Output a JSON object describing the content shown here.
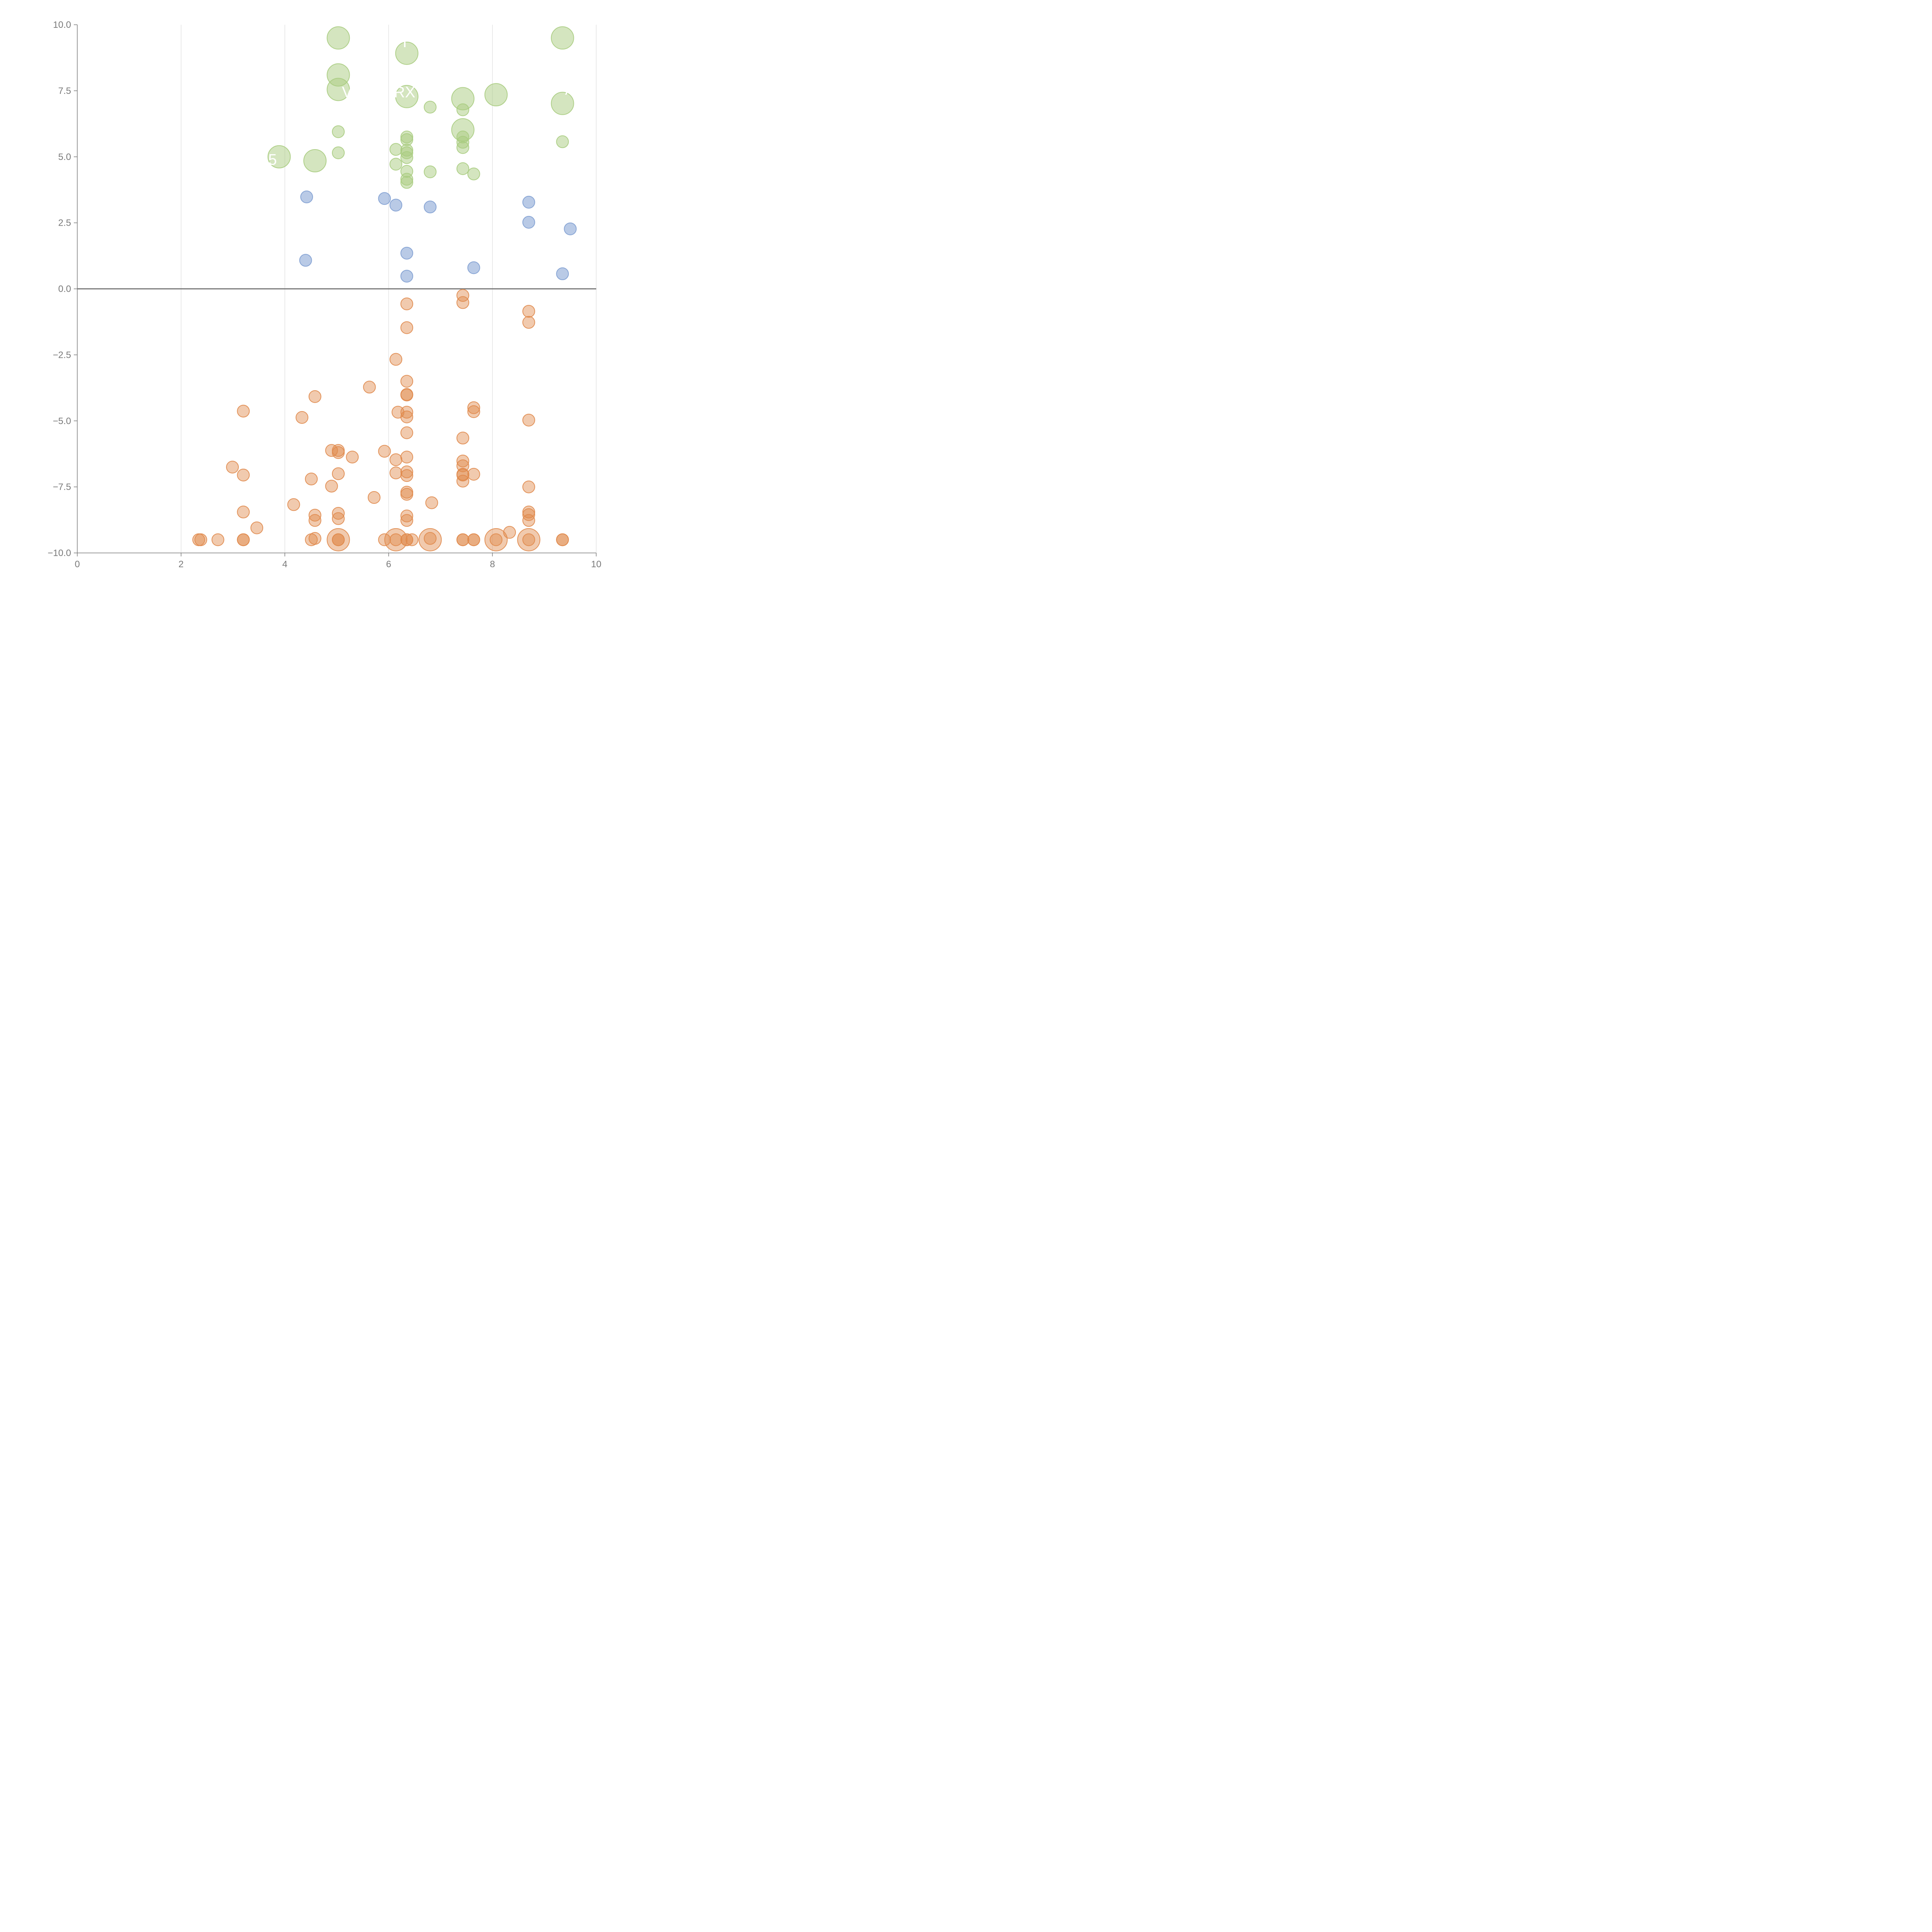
{
  "chart_data": {
    "type": "scatter",
    "title": "",
    "xlabel": "",
    "ylabel": "",
    "xlim": [
      0,
      10
    ],
    "ylim": [
      -10,
      10
    ],
    "x_ticks": [
      0,
      2,
      4,
      6,
      8,
      10
    ],
    "x_tick_labels": [
      "0",
      "2",
      "4",
      "6",
      "8",
      "10"
    ],
    "y_ticks": [
      -10,
      -7.5,
      -5,
      -2.5,
      0,
      2.5,
      5,
      7.5,
      10
    ],
    "y_tick_labels": [
      "−10.0",
      "−7.5",
      "−5.0",
      "−2.5",
      "0.0",
      "2.5",
      "5.0",
      "7.5",
      "10.0"
    ],
    "vertical_gridlines": true,
    "zero_line": true,
    "colors": {
      "green": "#a9cc80",
      "blue": "#7f9fd2",
      "orange": "#e08a4c",
      "axis": "#7a7a7a",
      "grid": "#dddddd"
    },
    "series": [
      {
        "name": "green",
        "color": "#a9cc80",
        "opacity": 0.5,
        "points": [
          [
            5.03,
            9.5,
            "l"
          ],
          [
            9.35,
            9.5,
            "l"
          ],
          [
            6.35,
            8.92,
            "l"
          ],
          [
            5.03,
            8.1,
            "l"
          ],
          [
            5.03,
            7.55,
            "l"
          ],
          [
            6.35,
            7.28,
            "l"
          ],
          [
            7.43,
            7.2,
            "l"
          ],
          [
            8.07,
            7.35,
            "l"
          ],
          [
            9.35,
            7.02,
            "l"
          ],
          [
            7.43,
            6.02,
            "l"
          ],
          [
            3.89,
            5.0,
            "l"
          ],
          [
            4.58,
            4.85,
            "l"
          ],
          [
            6.8,
            6.88,
            "s"
          ],
          [
            7.43,
            6.78,
            "s"
          ],
          [
            5.03,
            5.95,
            "s"
          ],
          [
            6.35,
            5.75,
            "s"
          ],
          [
            6.35,
            5.65,
            "s"
          ],
          [
            7.43,
            5.75,
            "s"
          ],
          [
            7.43,
            5.55,
            "s"
          ],
          [
            7.43,
            5.35,
            "s"
          ],
          [
            9.35,
            5.57,
            "s"
          ],
          [
            6.14,
            5.28,
            "s"
          ],
          [
            6.35,
            5.25,
            "s"
          ],
          [
            6.35,
            5.15,
            "s"
          ],
          [
            5.03,
            5.15,
            "s"
          ],
          [
            6.35,
            4.97,
            "s"
          ],
          [
            6.14,
            4.72,
            "s"
          ],
          [
            6.35,
            4.45,
            "s"
          ],
          [
            6.8,
            4.43,
            "s"
          ],
          [
            7.43,
            4.55,
            "s"
          ],
          [
            7.64,
            4.35,
            "s"
          ],
          [
            6.35,
            4.15,
            "s"
          ],
          [
            6.35,
            4.03,
            "s"
          ]
        ]
      },
      {
        "name": "blue",
        "color": "#7f9fd2",
        "opacity": 0.55,
        "points": [
          [
            4.42,
            3.48,
            "s"
          ],
          [
            5.92,
            3.42,
            "s"
          ],
          [
            6.14,
            3.17,
            "s"
          ],
          [
            6.8,
            3.1,
            "s"
          ],
          [
            8.7,
            3.28,
            "s"
          ],
          [
            8.7,
            2.52,
            "s"
          ],
          [
            9.5,
            2.27,
            "s"
          ],
          [
            6.35,
            1.35,
            "s"
          ],
          [
            4.4,
            1.08,
            "s"
          ],
          [
            7.64,
            0.8,
            "s"
          ],
          [
            6.35,
            0.48,
            "s"
          ],
          [
            9.35,
            0.57,
            "s"
          ]
        ]
      },
      {
        "name": "orange",
        "color": "#e08a4c",
        "opacity": 0.45,
        "points": [
          [
            7.43,
            -0.25,
            "s"
          ],
          [
            7.43,
            -0.52,
            "s"
          ],
          [
            6.35,
            -0.57,
            "s"
          ],
          [
            8.7,
            -0.85,
            "s"
          ],
          [
            8.7,
            -1.27,
            "s"
          ],
          [
            6.35,
            -1.47,
            "s"
          ],
          [
            6.14,
            -2.67,
            "s"
          ],
          [
            6.35,
            -3.5,
            "s"
          ],
          [
            5.63,
            -3.72,
            "s"
          ],
          [
            6.35,
            -4.0,
            "s"
          ],
          [
            6.35,
            -4.02,
            "s"
          ],
          [
            4.58,
            -4.08,
            "s"
          ],
          [
            3.2,
            -4.63,
            "s"
          ],
          [
            7.64,
            -4.5,
            "s"
          ],
          [
            7.64,
            -4.65,
            "s"
          ],
          [
            6.18,
            -4.67,
            "s"
          ],
          [
            6.35,
            -4.67,
            "s"
          ],
          [
            6.35,
            -4.85,
            "s"
          ],
          [
            4.33,
            -4.87,
            "s"
          ],
          [
            8.7,
            -4.97,
            "s"
          ],
          [
            6.35,
            -5.45,
            "s"
          ],
          [
            7.43,
            -5.65,
            "s"
          ],
          [
            4.9,
            -6.12,
            "s"
          ],
          [
            5.03,
            -6.12,
            "s"
          ],
          [
            5.03,
            -6.2,
            "s"
          ],
          [
            5.92,
            -6.15,
            "s"
          ],
          [
            5.3,
            -6.37,
            "s"
          ],
          [
            6.35,
            -6.37,
            "s"
          ],
          [
            6.14,
            -6.47,
            "s"
          ],
          [
            7.43,
            -6.52,
            "s"
          ],
          [
            7.43,
            -6.7,
            "s"
          ],
          [
            2.99,
            -6.75,
            "s"
          ],
          [
            6.35,
            -6.93,
            "s"
          ],
          [
            6.14,
            -6.97,
            "s"
          ],
          [
            5.03,
            -7.0,
            "s"
          ],
          [
            7.43,
            -7.02,
            "s"
          ],
          [
            7.43,
            -7.05,
            "s"
          ],
          [
            7.64,
            -7.02,
            "s"
          ],
          [
            6.35,
            -7.07,
            "s"
          ],
          [
            3.2,
            -7.05,
            "s"
          ],
          [
            4.51,
            -7.2,
            "s"
          ],
          [
            7.43,
            -7.28,
            "s"
          ],
          [
            4.9,
            -7.47,
            "s"
          ],
          [
            8.7,
            -7.5,
            "s"
          ],
          [
            6.35,
            -7.7,
            "s"
          ],
          [
            6.35,
            -7.78,
            "s"
          ],
          [
            5.72,
            -7.9,
            "s"
          ],
          [
            6.83,
            -8.1,
            "s"
          ],
          [
            4.17,
            -8.17,
            "s"
          ],
          [
            3.2,
            -8.45,
            "s"
          ],
          [
            5.03,
            -8.5,
            "s"
          ],
          [
            8.7,
            -8.45,
            "s"
          ],
          [
            8.7,
            -8.55,
            "s"
          ],
          [
            4.58,
            -8.57,
            "s"
          ],
          [
            6.35,
            -8.6,
            "s"
          ],
          [
            5.03,
            -8.7,
            "s"
          ],
          [
            4.58,
            -8.77,
            "s"
          ],
          [
            6.35,
            -8.77,
            "s"
          ],
          [
            8.7,
            -8.77,
            "s"
          ],
          [
            3.46,
            -9.05,
            "s"
          ],
          [
            8.33,
            -9.22,
            "s"
          ],
          [
            6.8,
            -9.45,
            "s"
          ],
          [
            4.58,
            -9.45,
            "s"
          ],
          [
            2.34,
            -9.5,
            "s"
          ],
          [
            2.38,
            -9.5,
            "s"
          ],
          [
            2.71,
            -9.5,
            "s"
          ],
          [
            3.2,
            -9.5,
            "s"
          ],
          [
            3.2,
            -9.5,
            "s"
          ],
          [
            4.51,
            -9.5,
            "s"
          ],
          [
            5.03,
            -9.5,
            "s"
          ],
          [
            5.03,
            -9.5,
            "s"
          ],
          [
            5.92,
            -9.5,
            "s"
          ],
          [
            6.14,
            -9.5,
            "s"
          ],
          [
            6.35,
            -9.5,
            "s"
          ],
          [
            6.35,
            -9.5,
            "s"
          ],
          [
            6.45,
            -9.5,
            "s"
          ],
          [
            7.43,
            -9.5,
            "s"
          ],
          [
            7.43,
            -9.5,
            "s"
          ],
          [
            7.64,
            -9.5,
            "s"
          ],
          [
            7.64,
            -9.5,
            "s"
          ],
          [
            8.07,
            -9.5,
            "s"
          ],
          [
            8.7,
            -9.5,
            "s"
          ],
          [
            9.35,
            -9.5,
            "s"
          ],
          [
            9.35,
            -9.5,
            "s"
          ],
          [
            5.03,
            -9.5,
            "l"
          ],
          [
            6.14,
            -9.5,
            "l"
          ],
          [
            6.8,
            -9.5,
            "l"
          ],
          [
            8.07,
            -9.5,
            "l"
          ],
          [
            8.7,
            -9.5,
            "l"
          ]
        ]
      }
    ],
    "annotations": [
      {
        "text": "VA",
        "x": 5.1,
        "y": 7.25
      },
      {
        "text": "RX",
        "x": 6.1,
        "y": 7.25
      },
      {
        "text": "I",
        "x": 6.27,
        "y": 9.15
      },
      {
        "text": "V",
        "x": 6.6,
        "y": 8.65
      },
      {
        "text": "A",
        "x": 4.8,
        "y": 4.45
      },
      {
        "text": "5",
        "x": 3.68,
        "y": 4.7
      },
      {
        "text": "A",
        "x": 9.4,
        "y": 7.35
      }
    ]
  }
}
